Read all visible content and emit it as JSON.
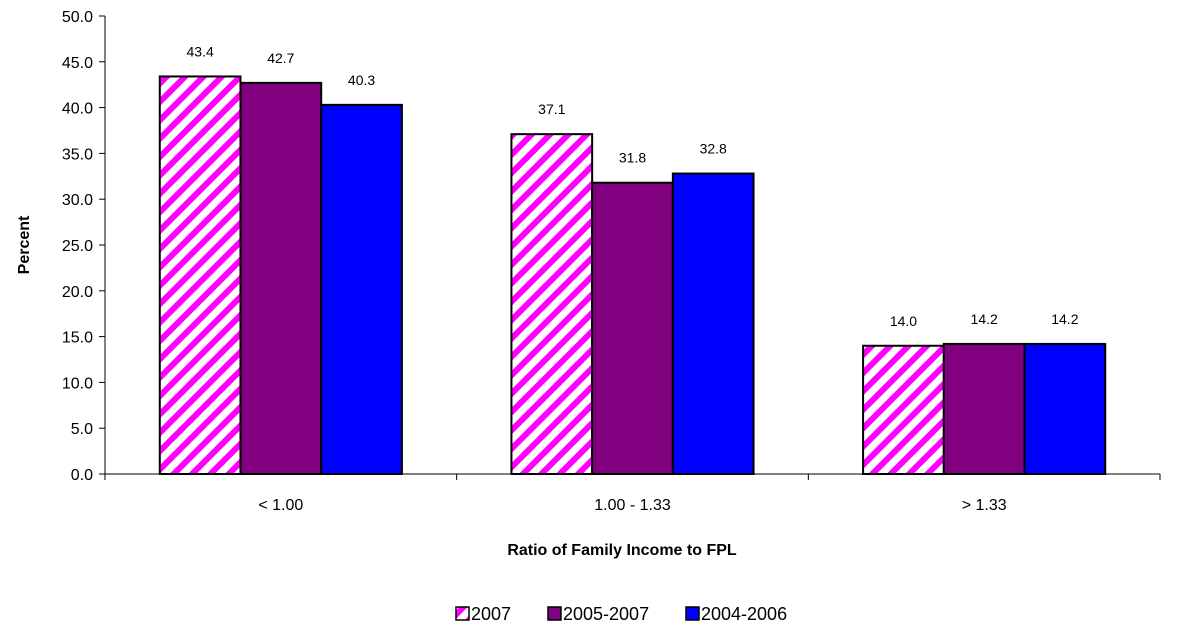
{
  "chart_data": {
    "type": "bar",
    "categories": [
      "< 1.00",
      "1.00 - 1.33",
      "> 1.33"
    ],
    "series": [
      {
        "name": "2007",
        "values": [
          43.4,
          37.1,
          14.0
        ],
        "value_labels": [
          "43.4",
          "37.1",
          "14.0"
        ],
        "color": "#ff00ff",
        "pattern": "diagonal-stripes"
      },
      {
        "name": "2005-2007",
        "values": [
          42.7,
          31.8,
          14.2
        ],
        "value_labels": [
          "42.7",
          "31.8",
          "14.2"
        ],
        "color": "#800080"
      },
      {
        "name": "2004-2006",
        "values": [
          40.3,
          32.8,
          14.2
        ],
        "value_labels": [
          "40.3",
          "32.8",
          "14.2"
        ],
        "color": "#0000ff"
      }
    ],
    "xlabel": "Ratio of Family Income to FPL",
    "ylabel": "Percent",
    "ylim": [
      0,
      50
    ],
    "yticks": [
      "0.0",
      "5.0",
      "10.0",
      "15.0",
      "20.0",
      "25.0",
      "30.0",
      "35.0",
      "40.0",
      "45.0",
      "50.0"
    ],
    "grid": false,
    "legend_position": "bottom"
  }
}
